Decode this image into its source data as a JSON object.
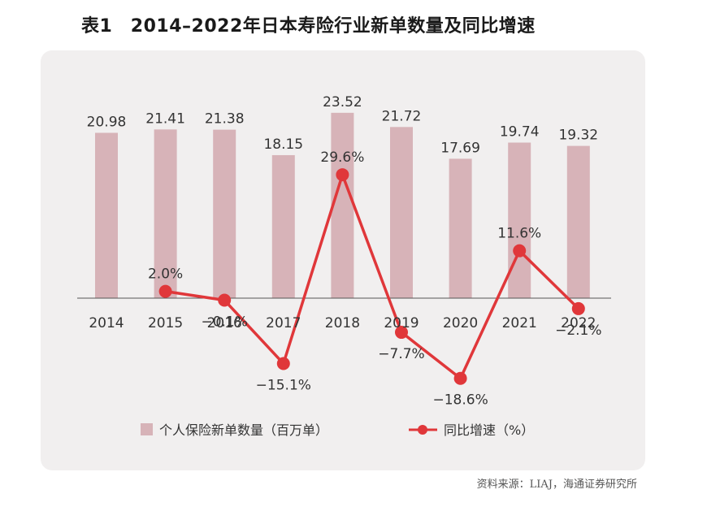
{
  "title": "表1　2014–2022年日本寿险行业新单数量及同比增速",
  "source": "资料来源：LIAJ，海通证券研究所",
  "colors": {
    "bar": "#d7b3b8",
    "line": "#e0373a",
    "axis": "#555555",
    "panel": "#f1efef"
  },
  "chart_data": {
    "type": "bar+line",
    "categories": [
      "2014",
      "2015",
      "2016",
      "2017",
      "2018",
      "2019",
      "2020",
      "2021",
      "2022"
    ],
    "series": [
      {
        "name": "个人保险新单数量（百万单）",
        "type": "bar",
        "values": [
          20.98,
          21.41,
          21.38,
          18.15,
          23.52,
          21.72,
          17.69,
          19.74,
          19.32
        ],
        "labels": [
          "20.98",
          "21.41",
          "21.38",
          "18.15",
          "23.52",
          "21.72",
          "17.69",
          "19.74",
          "19.32"
        ]
      },
      {
        "name": "同比增速（%）",
        "type": "line",
        "values": [
          null,
          2.0,
          -0.1,
          -15.1,
          29.6,
          -7.7,
          -18.6,
          11.6,
          -2.1
        ],
        "labels": [
          "",
          "2.0%",
          "−0.1%",
          "−15.1%",
          "29.6%",
          "−7.7%",
          "−18.6%",
          "11.6%",
          "−2.1%"
        ]
      }
    ]
  },
  "legend": {
    "bar_label": "个人保险新单数量（百万单）",
    "line_label": "同比增速（%）"
  }
}
